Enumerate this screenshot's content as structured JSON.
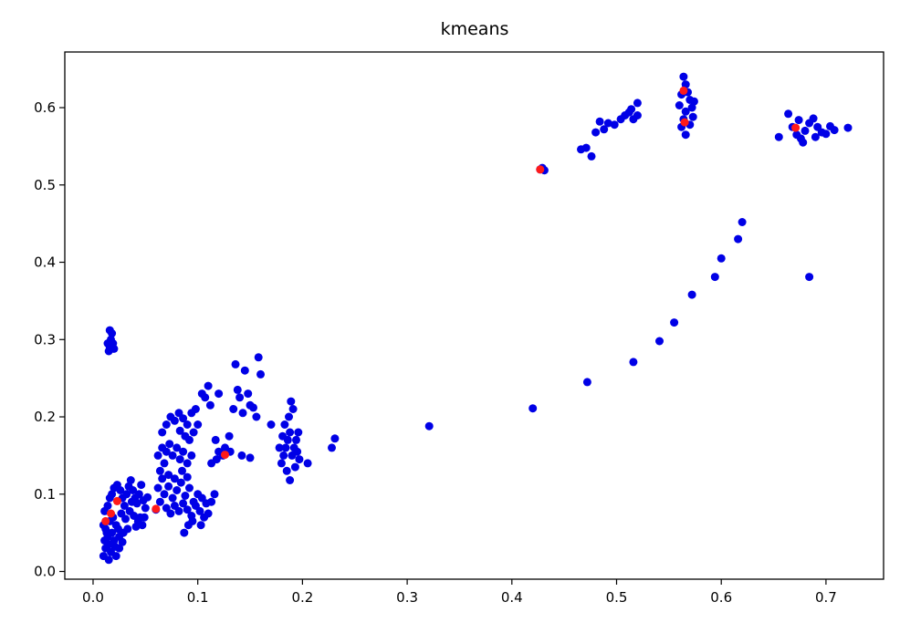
{
  "chart_data": {
    "type": "scatter",
    "title": "kmeans",
    "xlabel": "",
    "ylabel": "",
    "xlim": [
      -0.027,
      0.755
    ],
    "ylim": [
      -0.01,
      0.672
    ],
    "xticks": [
      0.0,
      0.1,
      0.2,
      0.3,
      0.4,
      0.5,
      0.6,
      0.7
    ],
    "xtick_labels": [
      "0.0",
      "0.1",
      "0.2",
      "0.3",
      "0.4",
      "0.5",
      "0.6",
      "0.7"
    ],
    "yticks": [
      0.0,
      0.1,
      0.2,
      0.3,
      0.4,
      0.5,
      0.6
    ],
    "ytick_labels": [
      "0.0",
      "0.1",
      "0.2",
      "0.3",
      "0.4",
      "0.5",
      "0.6"
    ],
    "grid": false,
    "legend": "none",
    "series": [
      {
        "color": "#0000e6",
        "points": [
          [
            0.01,
            0.02
          ],
          [
            0.012,
            0.03
          ],
          [
            0.011,
            0.04
          ],
          [
            0.013,
            0.05
          ],
          [
            0.01,
            0.06
          ],
          [
            0.014,
            0.045
          ],
          [
            0.015,
            0.035
          ],
          [
            0.012,
            0.055
          ],
          [
            0.016,
            0.065
          ],
          [
            0.018,
            0.05
          ],
          [
            0.02,
            0.04
          ],
          [
            0.022,
            0.06
          ],
          [
            0.019,
            0.07
          ],
          [
            0.024,
            0.055
          ],
          [
            0.025,
            0.03
          ],
          [
            0.017,
            0.025
          ],
          [
            0.011,
            0.078
          ],
          [
            0.014,
            0.085
          ],
          [
            0.016,
            0.095
          ],
          [
            0.018,
            0.1
          ],
          [
            0.02,
            0.108
          ],
          [
            0.023,
            0.112
          ],
          [
            0.026,
            0.105
          ],
          [
            0.028,
            0.095
          ],
          [
            0.03,
            0.085
          ],
          [
            0.032,
            0.1
          ],
          [
            0.034,
            0.11
          ],
          [
            0.036,
            0.118
          ],
          [
            0.038,
            0.105
          ],
          [
            0.04,
            0.095
          ],
          [
            0.042,
            0.088
          ],
          [
            0.044,
            0.1
          ],
          [
            0.046,
            0.112
          ],
          [
            0.048,
            0.092
          ],
          [
            0.05,
            0.082
          ],
          [
            0.052,
            0.096
          ],
          [
            0.027,
            0.075
          ],
          [
            0.031,
            0.068
          ],
          [
            0.035,
            0.078
          ],
          [
            0.039,
            0.072
          ],
          [
            0.043,
            0.065
          ],
          [
            0.047,
            0.06
          ],
          [
            0.025,
            0.045
          ],
          [
            0.029,
            0.05
          ],
          [
            0.021,
            0.032
          ],
          [
            0.015,
            0.015
          ],
          [
            0.022,
            0.02
          ],
          [
            0.028,
            0.038
          ],
          [
            0.033,
            0.055
          ],
          [
            0.037,
            0.09
          ],
          [
            0.045,
            0.07
          ],
          [
            0.049,
            0.07
          ],
          [
            0.041,
            0.058
          ],
          [
            0.06,
            0.08
          ],
          [
            0.064,
            0.09
          ],
          [
            0.068,
            0.1
          ],
          [
            0.072,
            0.11
          ],
          [
            0.076,
            0.095
          ],
          [
            0.08,
            0.105
          ],
          [
            0.084,
            0.115
          ],
          [
            0.088,
            0.098
          ],
          [
            0.092,
            0.108
          ],
          [
            0.096,
            0.09
          ],
          [
            0.1,
            0.1
          ],
          [
            0.104,
            0.095
          ],
          [
            0.108,
            0.088
          ],
          [
            0.07,
            0.082
          ],
          [
            0.074,
            0.075
          ],
          [
            0.078,
            0.085
          ],
          [
            0.082,
            0.078
          ],
          [
            0.086,
            0.088
          ],
          [
            0.09,
            0.08
          ],
          [
            0.094,
            0.072
          ],
          [
            0.098,
            0.085
          ],
          [
            0.066,
            0.12
          ],
          [
            0.072,
            0.125
          ],
          [
            0.078,
            0.12
          ],
          [
            0.085,
            0.13
          ],
          [
            0.09,
            0.122
          ],
          [
            0.087,
            0.05
          ],
          [
            0.091,
            0.06
          ],
          [
            0.095,
            0.065
          ],
          [
            0.062,
            0.108
          ],
          [
            0.102,
            0.078
          ],
          [
            0.106,
            0.07
          ],
          [
            0.11,
            0.075
          ],
          [
            0.113,
            0.09
          ],
          [
            0.116,
            0.1
          ],
          [
            0.062,
            0.15
          ],
          [
            0.066,
            0.16
          ],
          [
            0.07,
            0.155
          ],
          [
            0.073,
            0.165
          ],
          [
            0.076,
            0.15
          ],
          [
            0.08,
            0.16
          ],
          [
            0.083,
            0.145
          ],
          [
            0.086,
            0.155
          ],
          [
            0.09,
            0.14
          ],
          [
            0.094,
            0.15
          ],
          [
            0.068,
            0.14
          ],
          [
            0.064,
            0.13
          ],
          [
            0.066,
            0.18
          ],
          [
            0.07,
            0.19
          ],
          [
            0.074,
            0.2
          ],
          [
            0.078,
            0.195
          ],
          [
            0.082,
            0.205
          ],
          [
            0.086,
            0.198
          ],
          [
            0.09,
            0.19
          ],
          [
            0.094,
            0.205
          ],
          [
            0.098,
            0.21
          ],
          [
            0.083,
            0.182
          ],
          [
            0.088,
            0.175
          ],
          [
            0.092,
            0.17
          ],
          [
            0.096,
            0.18
          ],
          [
            0.1,
            0.19
          ],
          [
            0.104,
            0.23
          ],
          [
            0.11,
            0.24
          ],
          [
            0.12,
            0.23
          ],
          [
            0.117,
            0.17
          ],
          [
            0.12,
            0.155
          ],
          [
            0.124,
            0.15
          ],
          [
            0.113,
            0.14
          ],
          [
            0.118,
            0.145
          ],
          [
            0.126,
            0.16
          ],
          [
            0.13,
            0.175
          ],
          [
            0.134,
            0.21
          ],
          [
            0.136,
            0.268
          ],
          [
            0.138,
            0.235
          ],
          [
            0.14,
            0.225
          ],
          [
            0.143,
            0.205
          ],
          [
            0.145,
            0.26
          ],
          [
            0.148,
            0.23
          ],
          [
            0.15,
            0.215
          ],
          [
            0.153,
            0.212
          ],
          [
            0.156,
            0.2
          ],
          [
            0.158,
            0.277
          ],
          [
            0.16,
            0.255
          ],
          [
            0.142,
            0.15
          ],
          [
            0.15,
            0.147
          ],
          [
            0.131,
            0.155
          ],
          [
            0.112,
            0.215
          ],
          [
            0.107,
            0.225
          ],
          [
            0.17,
            0.19
          ],
          [
            0.103,
            0.06
          ],
          [
            0.18,
            0.14
          ],
          [
            0.182,
            0.15
          ],
          [
            0.184,
            0.16
          ],
          [
            0.186,
            0.17
          ],
          [
            0.188,
            0.18
          ],
          [
            0.19,
            0.15
          ],
          [
            0.192,
            0.16
          ],
          [
            0.194,
            0.17
          ],
          [
            0.196,
            0.18
          ],
          [
            0.183,
            0.19
          ],
          [
            0.187,
            0.2
          ],
          [
            0.191,
            0.21
          ],
          [
            0.189,
            0.22
          ],
          [
            0.185,
            0.13
          ],
          [
            0.193,
            0.135
          ],
          [
            0.197,
            0.145
          ],
          [
            0.188,
            0.118
          ],
          [
            0.205,
            0.14
          ],
          [
            0.228,
            0.16
          ],
          [
            0.231,
            0.172
          ],
          [
            0.178,
            0.16
          ],
          [
            0.181,
            0.175
          ],
          [
            0.195,
            0.155
          ],
          [
            0.015,
            0.285
          ],
          [
            0.016,
            0.29
          ],
          [
            0.017,
            0.3
          ],
          [
            0.018,
            0.308
          ],
          [
            0.019,
            0.295
          ],
          [
            0.02,
            0.288
          ],
          [
            0.016,
            0.312
          ],
          [
            0.014,
            0.295
          ],
          [
            0.321,
            0.188
          ],
          [
            0.42,
            0.211
          ],
          [
            0.472,
            0.245
          ],
          [
            0.516,
            0.271
          ],
          [
            0.541,
            0.298
          ],
          [
            0.555,
            0.322
          ],
          [
            0.572,
            0.358
          ],
          [
            0.594,
            0.381
          ],
          [
            0.6,
            0.405
          ],
          [
            0.616,
            0.43
          ],
          [
            0.62,
            0.452
          ],
          [
            0.684,
            0.381
          ],
          [
            0.427,
            0.52
          ],
          [
            0.429,
            0.522
          ],
          [
            0.431,
            0.519
          ],
          [
            0.466,
            0.546
          ],
          [
            0.471,
            0.548
          ],
          [
            0.476,
            0.537
          ],
          [
            0.48,
            0.568
          ],
          [
            0.484,
            0.582
          ],
          [
            0.488,
            0.572
          ],
          [
            0.492,
            0.58
          ],
          [
            0.498,
            0.578
          ],
          [
            0.504,
            0.585
          ],
          [
            0.508,
            0.59
          ],
          [
            0.512,
            0.594
          ],
          [
            0.516,
            0.585
          ],
          [
            0.52,
            0.59
          ],
          [
            0.52,
            0.606
          ],
          [
            0.514,
            0.598
          ],
          [
            0.564,
            0.64
          ],
          [
            0.566,
            0.63
          ],
          [
            0.568,
            0.62
          ],
          [
            0.57,
            0.61
          ],
          [
            0.572,
            0.6
          ],
          [
            0.566,
            0.595
          ],
          [
            0.564,
            0.585
          ],
          [
            0.562,
            0.575
          ],
          [
            0.566,
            0.565
          ],
          [
            0.57,
            0.578
          ],
          [
            0.573,
            0.588
          ],
          [
            0.56,
            0.603
          ],
          [
            0.562,
            0.617
          ],
          [
            0.574,
            0.608
          ],
          [
            0.655,
            0.562
          ],
          [
            0.664,
            0.592
          ],
          [
            0.668,
            0.575
          ],
          [
            0.672,
            0.565
          ],
          [
            0.676,
            0.56
          ],
          [
            0.68,
            0.57
          ],
          [
            0.684,
            0.58
          ],
          [
            0.688,
            0.586
          ],
          [
            0.692,
            0.575
          ],
          [
            0.696,
            0.568
          ],
          [
            0.7,
            0.566
          ],
          [
            0.704,
            0.576
          ],
          [
            0.708,
            0.571
          ],
          [
            0.721,
            0.574
          ],
          [
            0.674,
            0.584
          ],
          [
            0.678,
            0.555
          ],
          [
            0.69,
            0.562
          ]
        ]
      },
      {
        "color": "#ff1a1a",
        "points": [
          [
            0.012,
            0.065
          ],
          [
            0.017,
            0.075
          ],
          [
            0.023,
            0.091
          ],
          [
            0.06,
            0.081
          ],
          [
            0.126,
            0.151
          ],
          [
            0.427,
            0.52
          ],
          [
            0.564,
            0.622
          ],
          [
            0.565,
            0.581
          ],
          [
            0.671,
            0.574
          ]
        ]
      }
    ]
  }
}
